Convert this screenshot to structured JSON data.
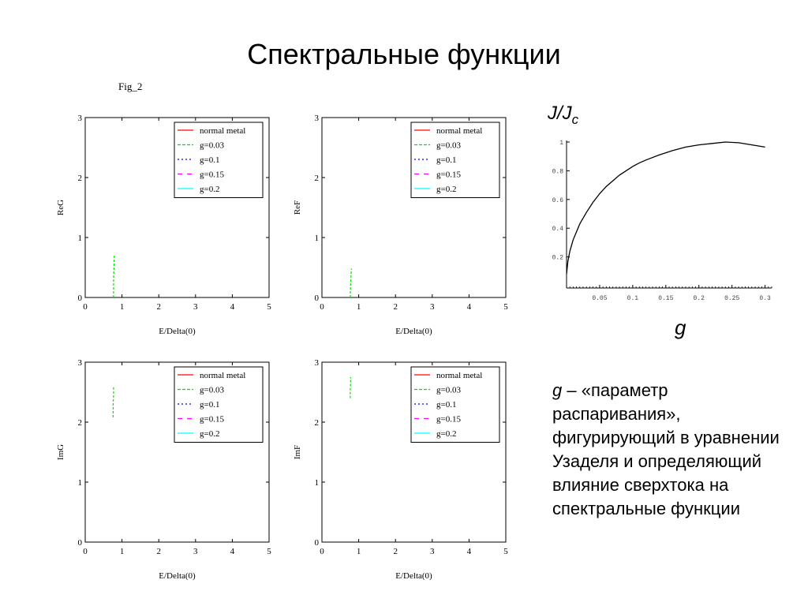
{
  "slide": {
    "title": "Спектральные функции",
    "fig_label": "Fig_2"
  },
  "description": {
    "g_symbol": "g",
    "text": " – «параметр распаривания», фигурирующий в уравнении Узаделя и определяющий влияние сверхтока на спектральные функции"
  },
  "colors": {
    "normal_metal": "#ff0000",
    "g003": "#00e000",
    "g01": "#0000ff",
    "g015": "#ff00ff",
    "g02": "#00ffff",
    "axis": "#000000",
    "curve": "#000000"
  },
  "chart_data": [
    {
      "type": "line",
      "id": "reg",
      "ylabel": "ReG",
      "xlabel": "E/Delta(0)",
      "xlim": [
        0,
        5
      ],
      "ylim": [
        0,
        3
      ],
      "xticks": [
        "0",
        "1",
        "2",
        "3",
        "4",
        "5"
      ],
      "yticks": [
        "0",
        "1",
        "2",
        "3"
      ],
      "legend_position": "top-right",
      "legend": [
        "normal metal",
        "g=0.03",
        "g=0.1",
        "g=0.15",
        "g=0.2"
      ],
      "series": [
        {
          "name": "g=0.03",
          "color_key": "g003",
          "dash": "dashed",
          "x": [
            0.77,
            0.77,
            0.78,
            0.79
          ],
          "y": [
            0.0,
            0.3,
            0.45,
            0.7
          ]
        }
      ]
    },
    {
      "type": "line",
      "id": "ref",
      "ylabel": "ReF",
      "xlabel": "E/Delta(0)",
      "xlim": [
        0,
        5
      ],
      "ylim": [
        0,
        3
      ],
      "xticks": [
        "0",
        "1",
        "2",
        "3",
        "4",
        "5"
      ],
      "yticks": [
        "0",
        "1",
        "2",
        "3"
      ],
      "legend_position": "top-right",
      "legend": [
        "normal metal",
        "g=0.03",
        "g=0.1",
        "g=0.15",
        "g=0.2"
      ],
      "series": [
        {
          "name": "g=0.03",
          "color_key": "g003",
          "dash": "dashed",
          "x": [
            0.77,
            0.78,
            0.79,
            0.8
          ],
          "y": [
            0.0,
            0.2,
            0.35,
            0.48
          ]
        }
      ]
    },
    {
      "type": "line",
      "id": "img",
      "ylabel": "ImG",
      "xlabel": "E/Delta(0)",
      "xlim": [
        0,
        5
      ],
      "ylim": [
        0,
        3
      ],
      "xticks": [
        "0",
        "1",
        "2",
        "3",
        "4",
        "5"
      ],
      "yticks": [
        "0",
        "1",
        "2",
        "3"
      ],
      "legend_position": "top-right",
      "legend": [
        "normal metal",
        "g=0.03",
        "g=0.1",
        "g=0.15",
        "g=0.2"
      ],
      "series": [
        {
          "name": "g=0.03",
          "color_key": "g003",
          "dash": "dashed",
          "x": [
            0.76,
            0.76,
            0.77,
            0.77
          ],
          "y": [
            2.08,
            2.3,
            2.45,
            2.6
          ]
        }
      ]
    },
    {
      "type": "line",
      "id": "imf",
      "ylabel": "ImF",
      "xlabel": "E/Delta(0)",
      "xlim": [
        0,
        5
      ],
      "ylim": [
        0,
        3
      ],
      "xticks": [
        "0",
        "1",
        "2",
        "3",
        "4",
        "5"
      ],
      "yticks": [
        "0",
        "1",
        "2",
        "3"
      ],
      "legend_position": "top-right",
      "legend": [
        "normal metal",
        "g=0.03",
        "g=0.1",
        "g=0.15",
        "g=0.2"
      ],
      "series": [
        {
          "name": "g=0.03",
          "color_key": "g003",
          "dash": "dashed",
          "x": [
            0.77,
            0.77,
            0.78,
            0.78
          ],
          "y": [
            2.4,
            2.55,
            2.65,
            2.75
          ]
        }
      ]
    },
    {
      "type": "line",
      "id": "jjc",
      "ylabel": "J/Jc",
      "xlabel": "g",
      "xlim": [
        0,
        0.31
      ],
      "ylim": [
        0,
        1.0
      ],
      "xticks": [
        "0.05",
        "0.1",
        "0.15",
        "0.2",
        "0.25",
        "0.3"
      ],
      "yticks": [
        "0.2",
        "0.4",
        "0.6",
        "0.8",
        "1"
      ],
      "grid": false,
      "series": [
        {
          "x": [
            0.0,
            0.002,
            0.005,
            0.01,
            0.02,
            0.03,
            0.04,
            0.05,
            0.06,
            0.07,
            0.08,
            0.09,
            0.1,
            0.11,
            0.12,
            0.14,
            0.16,
            0.18,
            0.2,
            0.22,
            0.24,
            0.26,
            0.28,
            0.3
          ],
          "y": [
            0.08,
            0.17,
            0.24,
            0.32,
            0.43,
            0.51,
            0.58,
            0.64,
            0.69,
            0.73,
            0.77,
            0.8,
            0.83,
            0.855,
            0.875,
            0.91,
            0.94,
            0.965,
            0.98,
            0.99,
            1.0,
            0.995,
            0.98,
            0.965
          ]
        }
      ]
    }
  ]
}
